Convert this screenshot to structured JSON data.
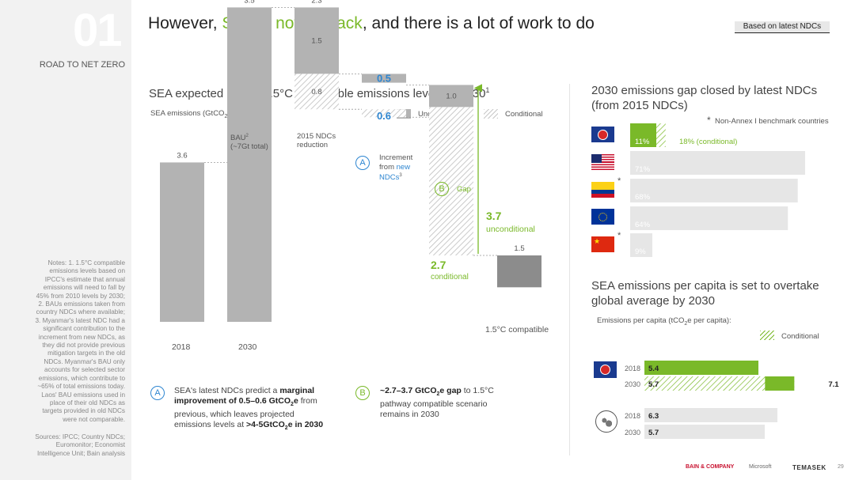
{
  "header": {
    "section_number": "01",
    "section_label": "ROAD TO NET ZERO",
    "title_prefix": "However, ",
    "title_highlight": "SEA is not on track",
    "title_suffix": ", and there is a lot of work to do",
    "badge": "Based on latest NDCs"
  },
  "sidebar": {
    "notes": "Notes: 1. 1.5°C compatible\nemissions levels based on\nIPCC's estimate that annual\nemissions will need to fall by\n45% from 2010 levels by 2030;\n2. BAUs emissions taken from\ncountry NDCs where available;\n3. Myanmar's latest NDC had a\nsignificant contribution to the\nincrement from new NDCs, as\nthey did not provide previous\nmitigation targets in the old\nNDCs. Myanmar's BAU only\naccounts for selected sector\nemissions, which contribute to\n~65% of total emissions today.\nLaos' BAU emissions used in\nplace of their old NDCs as\ntargets provided in old NDCs\nwere not comparable.",
    "sources": "Sources: IPCC; Country NDCs;\nEuromonitor; Economist\nIntelligence Unit; Bain analysis"
  },
  "waterfall": {
    "subtitle": "SEA expected gap to 1.5°C compatible emissions levels in 2030",
    "subtitle_sup": "1",
    "unit_label": "SEA emissions (GtCO",
    "unit_sub": "2",
    "unit_suffix": "e):",
    "legend_unconditional": "Unconditional",
    "legend_conditional": "Conditional",
    "label_bau": "BAU",
    "label_bau_sup": "2",
    "label_bau_sub": "(~7Gt total)",
    "label_ndc": "2015 NDCs",
    "label_ndc_sub": "reduction",
    "increment_label_1": "Increment",
    "increment_label_2": "from ",
    "increment_label_new": "new",
    "increment_label_3": "NDCs",
    "increment_label_sup": "3",
    "gap_label": "Gap",
    "gap_unconditional_value": "3.7",
    "gap_unconditional_label": "unconditional",
    "gap_conditional_value": "2.7",
    "gap_conditional_label": "conditional",
    "compatible_label": "1.5°C compatible",
    "letter_a": "A",
    "letter_b": "B",
    "x_labels": [
      "2018",
      "2030"
    ]
  },
  "chart_data": [
    {
      "type": "bar",
      "title": "SEA expected gap to 1.5°C compatible emissions levels in 2030",
      "ylabel": "SEA emissions (GtCO2e)",
      "categories": [
        "2018",
        "BAU (~7Gt total)",
        "2015 NDCs reduction",
        "Increment from new NDCs",
        "Gap",
        "1.5°C compatible"
      ],
      "bars": [
        {
          "category": "2018",
          "value": 3.6,
          "label": "3.6"
        },
        {
          "category": "BAU (~7Gt total)",
          "value": 3.5,
          "label": "3.5"
        },
        {
          "category": "2015 NDCs reduction",
          "total": 2.3,
          "total_label": "2.3",
          "unconditional": 1.5,
          "unconditional_label": "1.5",
          "conditional": 0.8,
          "conditional_label": "0.8"
        },
        {
          "category": "Increment from new NDCs",
          "unconditional": 0.5,
          "unconditional_label": "0.5",
          "conditional": 0.6,
          "conditional_label": "0.6"
        },
        {
          "category": "Gap",
          "unconditional": 1.0,
          "unconditional_label": "1.0",
          "conditional": 2.7
        },
        {
          "category": "1.5°C compatible",
          "value": 1.5,
          "label": "1.5"
        }
      ]
    },
    {
      "type": "bar",
      "title": "2030 emissions gap closed by latest NDCs (from 2015 NDCs)",
      "note": "Non-Annex I benchmark countries",
      "note_star": "*",
      "categories": [
        "SEA",
        "USA",
        "Colombia",
        "EU",
        "China"
      ],
      "values": [
        11,
        71,
        68,
        64,
        9
      ],
      "labels": [
        "11%",
        "71%",
        "68%",
        "64%",
        "9%"
      ],
      "conditional_value": 18,
      "conditional_label": "18% (conditional)",
      "starred": [
        false,
        false,
        true,
        false,
        true
      ]
    },
    {
      "type": "bar",
      "title": "SEA emissions per capita is set to overtake global average by 2030",
      "ylabel": "Emissions per capita (tCO2e per capita):",
      "legend_conditional": "Conditional",
      "groups": [
        {
          "name": "SEA",
          "rows": [
            {
              "year": "2018",
              "value": 5.4,
              "label": "5.4"
            },
            {
              "year": "2030",
              "value": 5.7,
              "label": "5.7",
              "conditional_total": 7.1,
              "conditional_label": "7.1"
            }
          ]
        },
        {
          "name": "Global",
          "rows": [
            {
              "year": "2018",
              "value": 6.3,
              "label": "6.3"
            },
            {
              "year": "2030",
              "value": 5.7,
              "label": "5.7"
            }
          ]
        }
      ]
    }
  ],
  "right_top": {
    "title_line1": "2030 emissions gap closed by latest NDCs",
    "title_line2": "(from 2015 NDCs)",
    "note": "Non-Annex I benchmark countries",
    "star": "*"
  },
  "right_bottom": {
    "title_line1": "SEA emissions per capita is set to overtake",
    "title_line2": "global average by 2030",
    "unit_prefix": "Emissions per capita (tCO",
    "unit_sub": "2",
    "unit_suffix": "e per capita):",
    "legend_conditional": "Conditional"
  },
  "annotations": {
    "a_letter": "A",
    "a_text_1": "SEA's latest NDCs predict a ",
    "a_bold_1": "marginal",
    "a_bold_2": "improvement of 0.5–0.6 GtCO",
    "a_bold_sub": "2",
    "a_bold_3": "e",
    "a_text_2": " from",
    "a_text_3": "previous, which leaves projected",
    "a_text_4": "emissions levels at ",
    "a_bold_4": ">4-5GtCO",
    "a_bold_4_sub": "2",
    "a_bold_5": "e in 2030",
    "b_letter": "B",
    "b_bold_1": "~2.7–3.7 GtCO",
    "b_bold_sub": "2",
    "b_bold_2": "e gap",
    "b_text_1": " to 1.5°C",
    "b_text_2": "pathway compatible scenario",
    "b_text_3": "remains in 2030"
  },
  "footer": {
    "brand_1": "BAIN & COMPANY",
    "brand_2": "Microsoft",
    "brand_3": "TEMASEK",
    "page": "29"
  },
  "colors": {
    "accent_green": "#7ab929",
    "accent_blue": "#2e86d1",
    "bar_grey": "#b3b3b3",
    "bar_dark": "#8c8c8c"
  }
}
